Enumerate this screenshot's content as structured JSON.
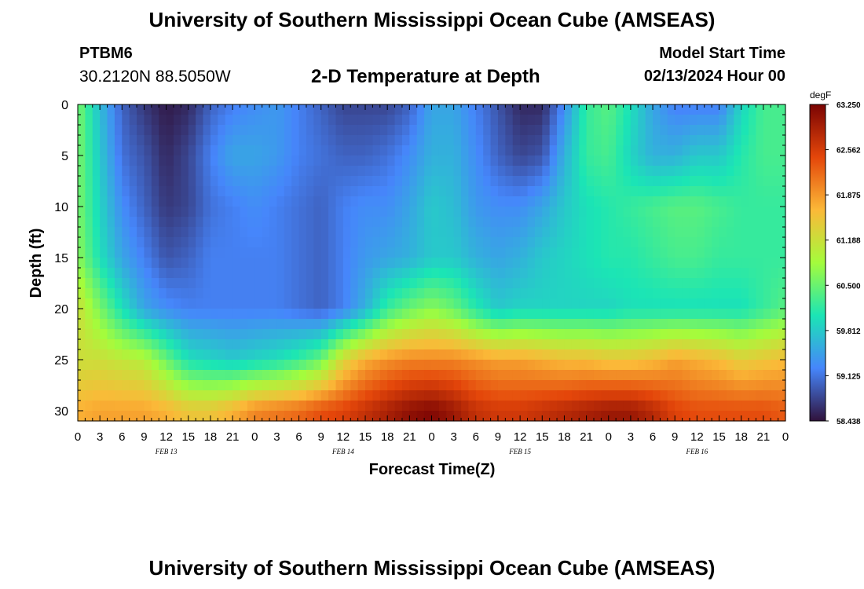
{
  "title": "University of Southern Mississippi Ocean Cube (AMSEAS)",
  "bottom_title": "University of Southern Mississippi Ocean Cube (AMSEAS)",
  "station": "PTBM6",
  "coordinates": "30.2120N  88.5050W",
  "subtitle": "2-D Temperature at Depth",
  "model_start_label": "Model Start Time",
  "model_start_value": "02/13/2024 Hour 00",
  "chart_data": {
    "type": "heatmap",
    "title": "2-D Temperature at Depth",
    "xlabel": "Forecast Time(Z)",
    "ylabel": "Depth (ft)",
    "x_tick_labels": [
      "0",
      "3",
      "6",
      "9",
      "12",
      "15",
      "18",
      "21",
      "0",
      "3",
      "6",
      "9",
      "12",
      "15",
      "18",
      "21",
      "0",
      "3",
      "6",
      "9",
      "12",
      "15",
      "18",
      "21",
      "0",
      "3",
      "6",
      "9",
      "12",
      "15",
      "18",
      "21",
      "0"
    ],
    "x_range_hours": [
      0,
      96
    ],
    "date_labels": [
      {
        "label": "FEB 13",
        "hour": 12
      },
      {
        "label": "FEB 14",
        "hour": 36
      },
      {
        "label": "FEB 15",
        "hour": 60
      },
      {
        "label": "FEB 16",
        "hour": 84
      }
    ],
    "y_tick_labels": [
      "0",
      "5",
      "10",
      "15",
      "20",
      "25",
      "30"
    ],
    "y_range_ft": [
      0,
      31
    ],
    "colorbar": {
      "unit": "degF",
      "min": 58.438,
      "max": 63.25,
      "tick_labels": [
        "63.250",
        "62.562",
        "61.875",
        "61.188",
        "60.500",
        "59.812",
        "59.125",
        "58.438"
      ]
    },
    "colors": {
      "cold": "#30123b",
      "blue": "#4686fb",
      "cyan": "#1be5b5",
      "green": "#a4fc3c",
      "yellow": "#fbb938",
      "orange": "#e4460a",
      "hot": "#7a0403"
    },
    "time_hours": [
      0,
      3,
      6,
      9,
      12,
      15,
      18,
      21,
      24,
      27,
      30,
      33,
      36,
      39,
      42,
      45,
      48,
      51,
      54,
      57,
      60,
      63,
      66,
      69,
      72,
      75,
      78,
      81,
      84,
      87,
      90,
      93,
      96
    ],
    "depth_ft": [
      0,
      5,
      10,
      15,
      20,
      25,
      30
    ],
    "temperature_degF": [
      [
        60.6,
        59.7,
        59.0,
        58.7,
        58.5,
        58.6,
        59.0,
        59.2,
        59.3,
        59.4,
        59.2,
        59.0,
        58.8,
        58.8,
        58.8,
        59.0,
        59.5,
        59.5,
        59.2,
        58.9,
        58.6,
        58.6,
        59.3,
        60.2,
        60.4,
        60.0,
        59.5,
        59.2,
        59.2,
        59.2,
        59.9,
        60.3,
        60.3
      ],
      [
        60.6,
        59.8,
        59.1,
        58.9,
        58.6,
        58.8,
        59.2,
        59.5,
        59.5,
        59.4,
        59.2,
        59.1,
        59.0,
        59.0,
        59.1,
        59.3,
        59.6,
        59.6,
        59.3,
        59.0,
        58.8,
        58.9,
        59.6,
        60.2,
        60.3,
        59.9,
        59.6,
        59.6,
        59.8,
        59.8,
        60.1,
        60.3,
        60.3
      ],
      [
        60.6,
        59.9,
        59.3,
        59.0,
        58.7,
        58.8,
        59.1,
        59.2,
        59.3,
        59.2,
        59.1,
        59.0,
        59.2,
        59.3,
        59.3,
        59.5,
        59.8,
        59.7,
        59.4,
        59.3,
        59.3,
        59.5,
        59.8,
        60.0,
        60.1,
        60.2,
        60.3,
        60.4,
        60.4,
        60.3,
        60.2,
        60.2,
        60.2
      ],
      [
        60.7,
        60.0,
        59.5,
        59.2,
        58.9,
        59.0,
        59.2,
        59.2,
        59.2,
        59.2,
        59.1,
        59.0,
        59.2,
        59.4,
        59.5,
        59.6,
        59.8,
        59.8,
        59.6,
        59.5,
        59.6,
        59.8,
        59.9,
        60.0,
        60.1,
        60.1,
        60.2,
        60.3,
        60.3,
        60.2,
        60.2,
        60.2,
        60.2
      ],
      [
        61.2,
        60.6,
        60.0,
        59.5,
        59.3,
        59.2,
        59.2,
        59.2,
        59.2,
        59.2,
        59.1,
        59.0,
        59.2,
        59.6,
        60.2,
        60.5,
        60.7,
        60.5,
        60.1,
        59.8,
        59.9,
        59.9,
        59.9,
        59.9,
        59.9,
        60.0,
        60.0,
        60.0,
        60.0,
        60.0,
        60.0,
        60.2,
        60.4
      ],
      [
        61.2,
        61.2,
        61.1,
        61.0,
        60.5,
        60.0,
        59.9,
        59.8,
        59.9,
        60.0,
        60.2,
        60.5,
        61.3,
        61.7,
        61.9,
        62.0,
        62.0,
        62.0,
        61.9,
        61.8,
        61.8,
        61.7,
        61.6,
        61.6,
        61.5,
        61.5,
        61.6,
        61.8,
        61.7,
        61.6,
        61.4,
        61.5,
        61.6
      ],
      [
        61.7,
        61.8,
        61.8,
        61.8,
        61.7,
        61.5,
        61.5,
        61.7,
        62.0,
        62.1,
        62.2,
        62.4,
        62.5,
        62.7,
        62.9,
        63.1,
        63.2,
        63.0,
        62.7,
        62.6,
        62.6,
        62.7,
        62.8,
        62.9,
        63.0,
        63.0,
        62.8,
        62.5,
        62.4,
        62.4,
        62.4,
        62.4,
        62.3
      ]
    ]
  }
}
